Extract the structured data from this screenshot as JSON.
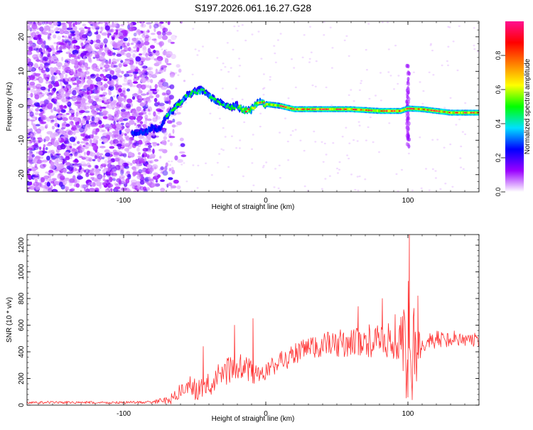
{
  "title": "S197.2026.061.16.27.G28",
  "chart_data": [
    {
      "type": "heatmap",
      "panel": "top",
      "title": "S197.2026.061.16.27.G28",
      "xlabel": "Height of straight line (km)",
      "ylabel": "Frequency (Hz)",
      "xlim": [
        -168,
        150
      ],
      "ylim": [
        -25,
        24.5
      ],
      "xticks": [
        -100,
        0,
        100
      ],
      "xtick_labels": [
        "-100",
        "0",
        "100"
      ],
      "yticks": [
        -20,
        -10,
        0,
        10,
        20
      ],
      "ytick_labels": [
        "-20",
        "-10",
        "0",
        "10",
        "20"
      ],
      "colorbar": {
        "label": "Normalized spectral amplitude",
        "range": [
          0,
          1
        ],
        "ticks": [
          0.0,
          0.2,
          0.4,
          0.6,
          0.8
        ],
        "tick_labels": [
          "0.0",
          "0.2",
          "0.4",
          "0.6",
          "0.8"
        ],
        "colormap": [
          "#ffffff",
          "#9a00ff",
          "#0000ff",
          "#00e0ff",
          "#00ff00",
          "#ffff00",
          "#ff8000",
          "#ff0000",
          "#ff1090"
        ]
      },
      "ridge": {
        "x": [
          -90,
          -85,
          -80,
          -75,
          -70,
          -65,
          -60,
          -55,
          -50,
          -45,
          -40,
          -35,
          -30,
          -25,
          -20,
          -15,
          -10,
          -5,
          0,
          10,
          20,
          40,
          60,
          80,
          95,
          100,
          110,
          120,
          130,
          140,
          150
        ],
        "y": [
          -8,
          -7.5,
          -6.5,
          -7,
          -3,
          -1,
          1,
          3,
          4,
          4.5,
          3,
          1.5,
          0.5,
          -0.5,
          0,
          -1.5,
          -1,
          1,
          0.5,
          0,
          -1,
          -1,
          -1,
          -1.5,
          -1.5,
          -0.8,
          -1,
          -1.5,
          -2,
          -2,
          -2
        ]
      },
      "noise_region_x": [
        -168,
        -75
      ]
    },
    {
      "type": "line",
      "panel": "bottom",
      "xlabel": "Height of straight line (km)",
      "ylabel": "SNR (10 * v/v)",
      "xlim": [
        -168,
        150
      ],
      "ylim": [
        0,
        1280
      ],
      "xticks": [
        -100,
        0,
        100
      ],
      "xtick_labels": [
        "-100",
        "0",
        "100"
      ],
      "yticks": [
        0,
        200,
        400,
        600,
        800,
        1000,
        1200
      ],
      "ytick_labels": [
        "0",
        "200",
        "400",
        "600",
        "800",
        "1000",
        "1200"
      ],
      "series": [
        {
          "name": "SNR",
          "color": "#ff3030",
          "trend_x": [
            -168,
            -140,
            -110,
            -80,
            -68,
            -60,
            -55,
            -50,
            -45,
            -40,
            -35,
            -30,
            -25,
            -20,
            -15,
            -10,
            -5,
            0,
            10,
            20,
            30,
            40,
            50,
            60,
            70,
            80,
            90,
            95,
            100,
            103,
            106,
            110,
            120,
            130,
            140,
            150
          ],
          "trend_y": [
            20,
            20,
            18,
            22,
            40,
            100,
            150,
            120,
            120,
            150,
            200,
            240,
            270,
            280,
            280,
            250,
            220,
            250,
            330,
            380,
            420,
            450,
            460,
            470,
            480,
            480,
            470,
            470,
            450,
            400,
            420,
            470,
            490,
            500,
            500,
            480
          ],
          "amplitude_x": [
            -168,
            -80,
            -70,
            -60,
            -40,
            -20,
            0,
            20,
            60,
            95,
            100,
            106,
            110,
            150
          ],
          "amplitude_y": [
            10,
            10,
            30,
            70,
            90,
            110,
            70,
            90,
            110,
            150,
            500,
            300,
            70,
            60
          ],
          "peaks": [
            {
              "x": 101,
              "y": 1280
            },
            {
              "x": 100,
              "y": 60
            },
            {
              "x": 103,
              "y": 40
            },
            {
              "x": -9,
              "y": 650
            },
            {
              "x": -22,
              "y": 600
            },
            {
              "x": -44,
              "y": 440
            },
            {
              "x": 82,
              "y": 800
            },
            {
              "x": 65,
              "y": 740
            },
            {
              "x": 91,
              "y": 680
            },
            {
              "x": 95,
              "y": 660
            },
            {
              "x": 107,
              "y": 820
            },
            {
              "x": 106,
              "y": 200
            }
          ]
        }
      ]
    }
  ]
}
